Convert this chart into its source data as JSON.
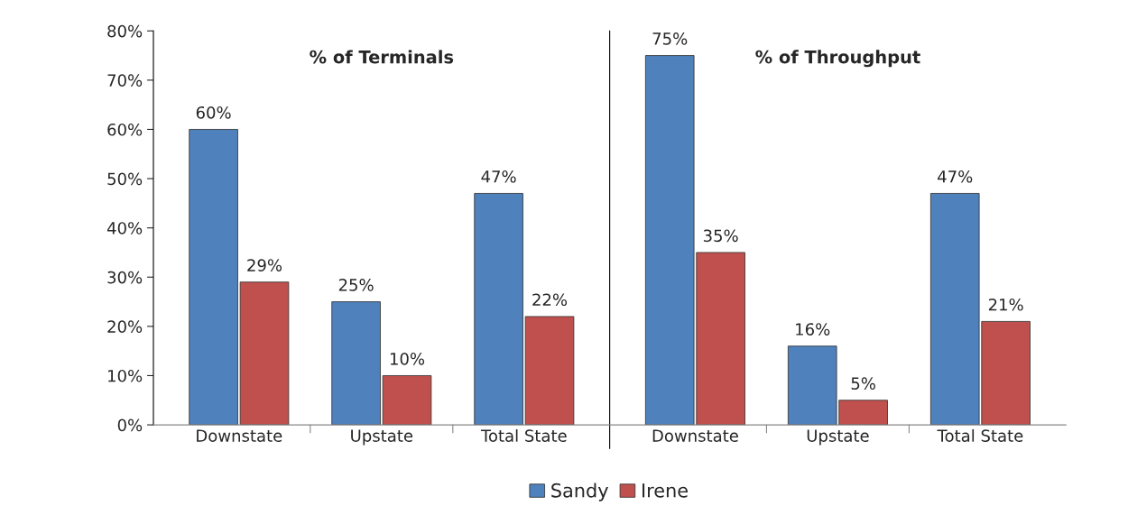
{
  "chart_data": [
    {
      "type": "bar",
      "title": "% of Terminals",
      "categories": [
        "Downstate",
        "Upstate",
        "Total State"
      ],
      "series": [
        {
          "name": "Sandy",
          "color": "#4f81bd",
          "values": [
            60,
            25,
            47
          ]
        },
        {
          "name": "Irene",
          "color": "#c0504d",
          "values": [
            29,
            10,
            22
          ]
        }
      ],
      "ylim": [
        0,
        80
      ],
      "yticks": [
        {
          "value": 0,
          "label": "0%"
        },
        {
          "value": 10,
          "label": "10%"
        },
        {
          "value": 20,
          "label": "20%"
        },
        {
          "value": 30,
          "label": "30%"
        },
        {
          "value": 40,
          "label": "40%"
        },
        {
          "value": 50,
          "label": "50%"
        },
        {
          "value": 60,
          "label": "60%"
        },
        {
          "value": 70,
          "label": "70%"
        },
        {
          "value": 80,
          "label": "80%"
        }
      ],
      "value_labels": [
        [
          "60%",
          "25%",
          "47%"
        ],
        [
          "29%",
          "10%",
          "22%"
        ]
      ],
      "legend": "bottom",
      "grid": false
    },
    {
      "type": "bar",
      "title": "% of Throughput",
      "categories": [
        "Downstate",
        "Upstate",
        "Total State"
      ],
      "series": [
        {
          "color": "#4f81bd",
          "values": [
            75,
            16,
            47
          ]
        },
        {
          "color": "#c0504d",
          "values": [
            35,
            5,
            21
          ]
        }
      ],
      "ylim": [
        0,
        80
      ],
      "tick_labels": "x",
      "value_labels": [
        [
          "75%",
          "16%",
          "47%"
        ],
        [
          "35%",
          "5%",
          "21%"
        ]
      ],
      "grid": false
    }
  ]
}
